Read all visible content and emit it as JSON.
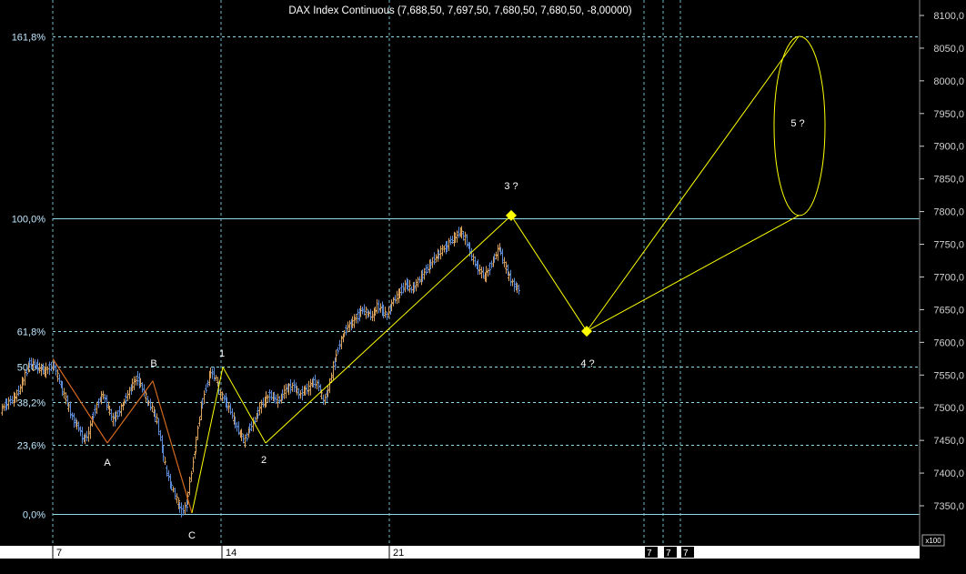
{
  "title": "DAX Index Continuous (7,688,50, 7,697,50, 7,680,50, 7,680,50, -8,00000)",
  "colors": {
    "background": "#000000",
    "grid": "#6fb7c9",
    "fib_line": "#8fd8e8",
    "wave": "#ffff00",
    "bar_up": "#d9a15a",
    "bar_down": "#5b8bd6",
    "axis_strip": "#ffffff"
  },
  "chart_data": {
    "type": "ohlc",
    "title": "DAX Index Continuous (7,688,50, 7,697,50, 7,680,50, 7,680,50, -8,00000)",
    "y_axis": {
      "ticks": [
        8100,
        8050,
        8000,
        7950,
        7900,
        7850,
        7800,
        7750,
        7700,
        7650,
        7600,
        7550,
        7500,
        7450,
        7400,
        7350
      ],
      "tick_labels": [
        "8100,0",
        "8050,0",
        "8000,0",
        "7950,0",
        "7900,0",
        "7850,0",
        "7800,0",
        "7750,0",
        "7700,0",
        "7650,0",
        "7600,0",
        "7550,0",
        "7500,0",
        "7450,0",
        "7400,0",
        "7350,0"
      ],
      "unit_label": "x100",
      "range": [
        7330,
        8110
      ]
    },
    "x_axis": {
      "tick_labels": [
        "7",
        "14",
        "21"
      ],
      "future_labels": [
        "7",
        "7",
        "7"
      ]
    },
    "fib_levels": [
      {
        "label": "161,8%",
        "value": 8068
      },
      {
        "label": "100,0%",
        "value": 7790
      },
      {
        "label": "61,8%",
        "value": 7617
      },
      {
        "label": "50,0%",
        "value": 7563
      },
      {
        "label": "38,2%",
        "value": 7508
      },
      {
        "label": "23,6%",
        "value": 7443
      },
      {
        "label": "0,0%",
        "value": 7337
      }
    ],
    "wave_labels": [
      {
        "label": "A",
        "value": 7440
      },
      {
        "label": "B",
        "value": 7540
      },
      {
        "label": "C",
        "value": 7337
      },
      {
        "label": "1",
        "value": 7562
      },
      {
        "label": "2",
        "value": 7446
      },
      {
        "label": "3 ?",
        "value": 7794
      },
      {
        "label": "4 ?",
        "value": 7617
      },
      {
        "label": "5 ?",
        "value": 8068
      }
    ],
    "wave_points": [
      {
        "label": "start",
        "value": 7575
      },
      {
        "label": "A",
        "value": 7446
      },
      {
        "label": "B",
        "value": 7541
      },
      {
        "label": "C",
        "value": 7339
      },
      {
        "label": "1",
        "value": 7562
      },
      {
        "label": "2",
        "value": 7446
      },
      {
        "label": "3 ?",
        "value": 7794
      },
      {
        "label": "4 ?",
        "value": 7617
      },
      {
        "label": "5 ? top",
        "value": 8068
      },
      {
        "label": "5 ? bottom",
        "value": 7794
      }
    ],
    "price_path": [
      7495,
      7505,
      7510,
      7515,
      7530,
      7550,
      7570,
      7565,
      7560,
      7555,
      7562,
      7565,
      7540,
      7520,
      7500,
      7480,
      7470,
      7450,
      7460,
      7490,
      7510,
      7520,
      7500,
      7480,
      7490,
      7505,
      7520,
      7535,
      7545,
      7530,
      7510,
      7500,
      7480,
      7440,
      7400,
      7380,
      7360,
      7340,
      7350,
      7400,
      7450,
      7500,
      7530,
      7555,
      7545,
      7520,
      7510,
      7495,
      7475,
      7460,
      7450,
      7470,
      7480,
      7500,
      7510,
      7520,
      7515,
      7510,
      7525,
      7530,
      7535,
      7520,
      7525,
      7530,
      7540,
      7535,
      7510,
      7525,
      7560,
      7590,
      7610,
      7625,
      7630,
      7640,
      7650,
      7645,
      7640,
      7655,
      7650,
      7640,
      7660,
      7670,
      7680,
      7690,
      7680,
      7690,
      7700,
      7710,
      7720,
      7730,
      7740,
      7745,
      7755,
      7760,
      7770,
      7760,
      7740,
      7720,
      7710,
      7700,
      7715,
      7730,
      7745,
      7720,
      7700,
      7688,
      7680
    ]
  }
}
